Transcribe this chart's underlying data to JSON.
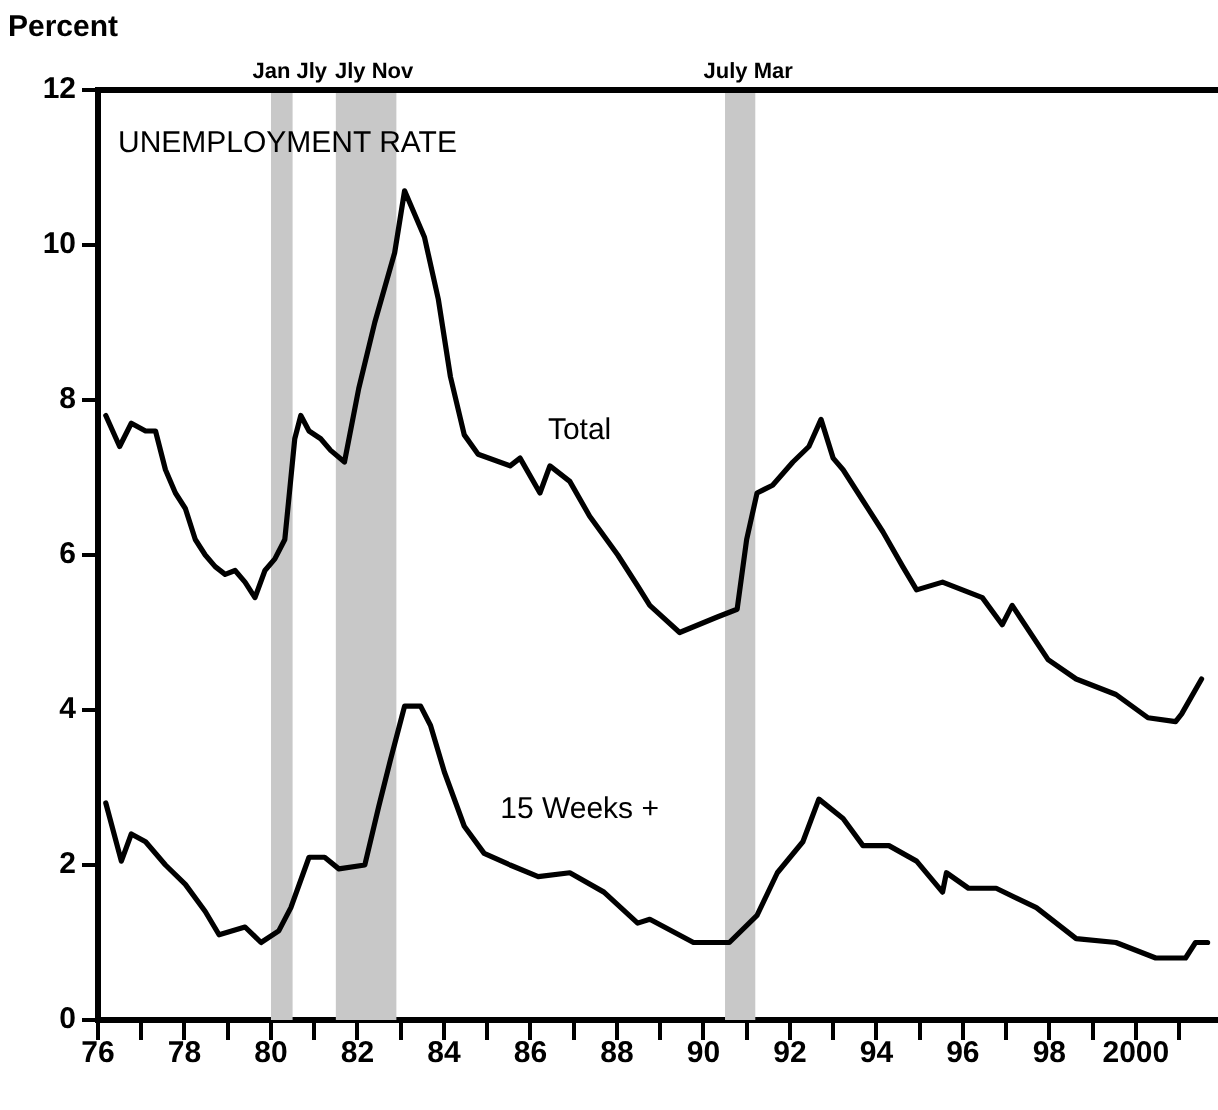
{
  "chart_data": {
    "type": "line",
    "title": "UNEMPLOYMENT RATE",
    "ylabel": "Percent",
    "xlim": [
      1976,
      2001.9
    ],
    "xticks": [
      {
        "value": 1976,
        "label": "76"
      },
      {
        "value": 1977,
        "label": null
      },
      {
        "value": 1978,
        "label": "78"
      },
      {
        "value": 1979,
        "label": null
      },
      {
        "value": 1980,
        "label": "80"
      },
      {
        "value": 1981,
        "label": null
      },
      {
        "value": 1982,
        "label": "82"
      },
      {
        "value": 1983,
        "label": null
      },
      {
        "value": 1984,
        "label": "84"
      },
      {
        "value": 1985,
        "label": null
      },
      {
        "value": 1986,
        "label": "86"
      },
      {
        "value": 1987,
        "label": null
      },
      {
        "value": 1988,
        "label": "88"
      },
      {
        "value": 1989,
        "label": null
      },
      {
        "value": 1990,
        "label": "90"
      },
      {
        "value": 1991,
        "label": null
      },
      {
        "value": 1992,
        "label": "92"
      },
      {
        "value": 1993,
        "label": null
      },
      {
        "value": 1994,
        "label": "94"
      },
      {
        "value": 1995,
        "label": null
      },
      {
        "value": 1996,
        "label": "96"
      },
      {
        "value": 1997,
        "label": null
      },
      {
        "value": 1998,
        "label": "98"
      },
      {
        "value": 1999,
        "label": null
      },
      {
        "value": 2000,
        "label": "2000"
      },
      {
        "value": 2001,
        "label": null
      }
    ],
    "ylim": [
      0,
      12
    ],
    "yticks": [
      0,
      2,
      4,
      6,
      8,
      10,
      12
    ],
    "grid": false,
    "legend": false,
    "marker": "none",
    "line_style": "solid",
    "bands": [
      {
        "axis": "x",
        "from": 1980.0,
        "to": 1980.5,
        "label": "Jan Jly",
        "color": "#c8c8c8"
      },
      {
        "axis": "x",
        "from": 1981.5,
        "to": 1982.9,
        "label": "Jly Nov",
        "color": "#c8c8c8"
      },
      {
        "axis": "x",
        "from": 1990.5,
        "to": 1991.2,
        "label": "July Mar",
        "color": "#c8c8c8"
      }
    ],
    "series": [
      {
        "name": "Total",
        "color": "#000000",
        "x": [
          1976.18,
          1976.5,
          1976.77,
          1977.1,
          1977.33,
          1977.56,
          1977.79,
          1978.02,
          1978.25,
          1978.48,
          1978.71,
          1978.94,
          1979.17,
          1979.4,
          1979.63,
          1979.86,
          1980.09,
          1980.32,
          1980.55,
          1980.69,
          1980.88,
          1981.15,
          1981.38,
          1981.7,
          1982.03,
          1982.4,
          1982.86,
          1983.09,
          1983.55,
          1983.87,
          1984.15,
          1984.47,
          1984.79,
          1985.53,
          1985.76,
          1986.22,
          1986.45,
          1986.91,
          1987.37,
          1988.02,
          1988.48,
          1988.76,
          1989.45,
          1990.32,
          1990.78,
          1991.0,
          1991.24,
          1991.6,
          1992.07,
          1992.44,
          1992.72,
          1993.0,
          1993.23,
          1993.69,
          1994.15,
          1994.61,
          1994.93,
          1995.53,
          1996.45,
          1996.91,
          1997.14,
          1997.97,
          1998.62,
          1999.54,
          2000.28,
          2000.92,
          2001.06,
          2001.52
        ],
        "values": [
          7.8,
          7.4,
          7.7,
          7.6,
          7.6,
          7.1,
          6.8,
          6.6,
          6.2,
          6.0,
          5.85,
          5.75,
          5.8,
          5.65,
          5.45,
          5.8,
          5.95,
          6.2,
          7.5,
          7.8,
          7.6,
          7.5,
          7.35,
          7.2,
          8.15,
          9.0,
          9.9,
          10.7,
          10.1,
          9.3,
          8.3,
          7.55,
          7.3,
          7.15,
          7.25,
          6.8,
          7.15,
          6.95,
          6.5,
          6.0,
          5.6,
          5.35,
          5.0,
          5.2,
          5.3,
          6.2,
          6.8,
          6.9,
          7.2,
          7.4,
          7.75,
          7.25,
          7.1,
          6.7,
          6.3,
          5.85,
          5.55,
          5.65,
          5.45,
          5.1,
          5.35,
          4.65,
          4.4,
          4.2,
          3.9,
          3.85,
          3.95,
          4.4
        ]
      },
      {
        "name": "15 Weeks +",
        "color": "#000000",
        "x": [
          1976.18,
          1976.54,
          1976.77,
          1977.1,
          1977.56,
          1978.02,
          1978.48,
          1978.8,
          1979.4,
          1979.77,
          1980.18,
          1980.46,
          1980.88,
          1981.24,
          1981.57,
          1982.17,
          1982.49,
          1982.76,
          1983.09,
          1983.46,
          1983.69,
          1984.01,
          1984.47,
          1984.93,
          1985.53,
          1986.18,
          1986.91,
          1987.7,
          1988.48,
          1988.76,
          1989.77,
          1990.6,
          1991.24,
          1991.71,
          1992.3,
          1992.67,
          1993.23,
          1993.69,
          1994.29,
          1994.93,
          1995.53,
          1995.62,
          1996.13,
          1996.77,
          1997.7,
          1998.62,
          1999.54,
          2000.46,
          2001.15,
          2001.38,
          2001.66
        ],
        "values": [
          2.8,
          2.05,
          2.4,
          2.3,
          2.0,
          1.75,
          1.4,
          1.1,
          1.2,
          1.0,
          1.15,
          1.45,
          2.1,
          2.1,
          1.95,
          2.0,
          2.75,
          3.35,
          4.05,
          4.05,
          3.8,
          3.2,
          2.5,
          2.15,
          2.0,
          1.85,
          1.9,
          1.65,
          1.25,
          1.3,
          1.0,
          1.0,
          1.35,
          1.9,
          2.3,
          2.85,
          2.6,
          2.25,
          2.25,
          2.05,
          1.65,
          1.9,
          1.7,
          1.7,
          1.45,
          1.05,
          1.0,
          0.8,
          0.8,
          1.0,
          1.0
        ]
      }
    ]
  }
}
